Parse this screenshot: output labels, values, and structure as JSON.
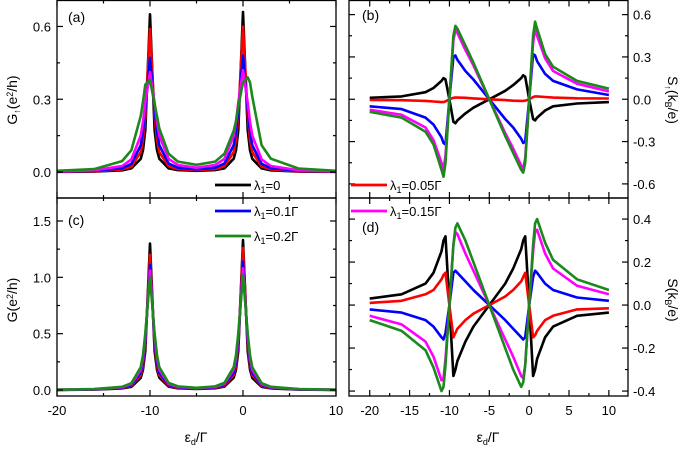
{
  "legend": [
    {
      "parts": [
        {
          "t": "λ"
        },
        {
          "t": "1",
          "sub": true
        },
        {
          "t": "=0"
        }
      ],
      "color": "#000000"
    },
    {
      "parts": [
        {
          "t": "λ"
        },
        {
          "t": "1",
          "sub": true
        },
        {
          "t": "=0.1Γ"
        }
      ],
      "color": "#0000ff"
    },
    {
      "parts": [
        {
          "t": "λ"
        },
        {
          "t": "1",
          "sub": true
        },
        {
          "t": "=0.2Γ"
        }
      ],
      "color": "#1a8a1a"
    },
    {
      "parts": [
        {
          "t": "λ"
        },
        {
          "t": "1",
          "sub": true
        },
        {
          "t": "=0.05Γ"
        }
      ],
      "color": "#ff0000"
    },
    {
      "parts": [
        {
          "t": "λ"
        },
        {
          "t": "1",
          "sub": true
        },
        {
          "t": "=0.15Γ"
        }
      ],
      "color": "#ff00ff"
    }
  ],
  "chart_data": [
    {
      "panel": "(a)",
      "type": "line",
      "ylabel_parts": [
        {
          "t": "G"
        },
        {
          "t": "↑",
          "sub": true
        },
        {
          "t": "(e"
        },
        {
          "t": "2",
          "sup": true
        },
        {
          "t": "/h)"
        }
      ],
      "xlim": [
        -20,
        10
      ],
      "ylim": [
        -0.107,
        0.707
      ],
      "xticks": [
        -20,
        -10,
        0,
        10
      ],
      "xtick_labels": [],
      "yticks": [
        0,
        0.3,
        0.6
      ],
      "ytick_labels": [
        "0.0",
        "0.3",
        "0.6"
      ],
      "x": [
        -20,
        -16,
        -13,
        -12,
        -11,
        -10.75,
        -10.5,
        -10,
        -9.5,
        -9.25,
        -9,
        -8,
        -7,
        -5,
        -3,
        -2,
        -1,
        -0.75,
        -0.5,
        0,
        0.5,
        0.75,
        1,
        2,
        3,
        6,
        10
      ],
      "series": [
        {
          "name": "λ1=0",
          "color": "#000000",
          "values": [
            0.001,
            0.002,
            0.007,
            0.015,
            0.054,
            0.09,
            0.173,
            0.65,
            0.173,
            0.09,
            0.055,
            0.015,
            0.008,
            0.005,
            0.008,
            0.015,
            0.055,
            0.09,
            0.173,
            0.66,
            0.173,
            0.09,
            0.054,
            0.015,
            0.007,
            0.002,
            0.001
          ]
        },
        {
          "name": "λ1=0.05Γ",
          "color": "#ff0000",
          "values": [
            0.001,
            0.003,
            0.011,
            0.023,
            0.082,
            0.132,
            0.231,
            0.59,
            0.231,
            0.132,
            0.082,
            0.024,
            0.012,
            0.008,
            0.012,
            0.024,
            0.082,
            0.132,
            0.231,
            0.6,
            0.231,
            0.132,
            0.082,
            0.023,
            0.011,
            0.003,
            0.001
          ]
        },
        {
          "name": "λ1=0.1Γ",
          "color": "#0000ff",
          "values": [
            0.002,
            0.005,
            0.016,
            0.034,
            0.11,
            0.166,
            0.259,
            0.471,
            0.259,
            0.166,
            0.111,
            0.035,
            0.018,
            0.011,
            0.018,
            0.035,
            0.111,
            0.166,
            0.259,
            0.48,
            0.259,
            0.166,
            0.11,
            0.034,
            0.016,
            0.005,
            0.002
          ]
        },
        {
          "name": "λ1=0.15Γ",
          "color": "#ff00ff",
          "values": [
            0.003,
            0.007,
            0.025,
            0.052,
            0.15,
            0.207,
            0.286,
            0.412,
            0.286,
            0.207,
            0.15,
            0.054,
            0.029,
            0.018,
            0.029,
            0.054,
            0.15,
            0.207,
            0.286,
            0.42,
            0.286,
            0.207,
            0.15,
            0.052,
            0.025,
            0.007,
            0.003
          ]
        },
        {
          "name": "λ1=0.2Γ",
          "color": "#1a8a1a",
          "values": [
            0.005,
            0.012,
            0.045,
            0.09,
            0.23,
            0.29,
            0.36,
            0.38,
            0.28,
            0.23,
            0.18,
            0.075,
            0.043,
            0.03,
            0.043,
            0.075,
            0.17,
            0.21,
            0.27,
            0.37,
            0.39,
            0.37,
            0.31,
            0.11,
            0.055,
            0.014,
            0.005
          ]
        }
      ]
    },
    {
      "panel": "(b)",
      "type": "line",
      "ylabel_parts": [
        {
          "t": "S"
        },
        {
          "t": "↑",
          "sub": true
        },
        {
          "t": "(k"
        },
        {
          "t": "B",
          "sub": true
        },
        {
          "t": "/e)"
        }
      ],
      "xlim": [
        -22.6,
        12.4
      ],
      "ylim": [
        -0.7,
        0.7
      ],
      "xticks": [
        -20,
        -15,
        -10,
        -5,
        0,
        5,
        10
      ],
      "xtick_labels": [],
      "yticks": [
        -0.6,
        -0.3,
        0,
        0.3,
        0.6
      ],
      "ytick_labels": [
        "-0.6",
        "-0.3",
        "0.0",
        "0.3",
        "0.6"
      ],
      "x": [
        -20,
        -16,
        -13,
        -12,
        -11,
        -10.75,
        -10.5,
        -10,
        -9.5,
        -9.25,
        -9,
        -8,
        -7,
        -5,
        -3,
        -2,
        -1,
        -0.75,
        -0.5,
        0,
        0.5,
        0.75,
        1,
        2,
        3,
        6,
        10
      ],
      "series": [
        {
          "name": "λ1=0",
          "color": "#000000",
          "values": [
            0.01,
            0.02,
            0.05,
            0.08,
            0.13,
            0.15,
            0.14,
            0,
            -0.16,
            -0.17,
            -0.15,
            -0.1,
            -0.06,
            0,
            0.06,
            0.1,
            0.15,
            0.17,
            0.16,
            0,
            -0.14,
            -0.15,
            -0.13,
            -0.08,
            -0.05,
            -0.03,
            -0.02
          ]
        },
        {
          "name": "λ1=0.05Γ",
          "color": "#ff0000",
          "values": [
            -0.005,
            -0.007,
            -0.012,
            -0.016,
            -0.02,
            -0.02,
            -0.015,
            0,
            0.01,
            0.012,
            0.012,
            0.01,
            0.006,
            0,
            -0.006,
            -0.01,
            -0.012,
            -0.012,
            -0.01,
            0,
            0.015,
            0.02,
            0.02,
            0.016,
            0.012,
            0.007,
            0.005
          ]
        },
        {
          "name": "λ1=0.1Γ",
          "color": "#0000ff",
          "values": [
            -0.05,
            -0.07,
            -0.13,
            -0.18,
            -0.27,
            -0.31,
            -0.32,
            0,
            0.3,
            0.31,
            0.28,
            0.2,
            0.14,
            0,
            -0.14,
            -0.2,
            -0.28,
            -0.31,
            -0.3,
            0,
            0.32,
            0.31,
            0.27,
            0.18,
            0.13,
            0.07,
            0.03
          ]
        },
        {
          "name": "λ1=0.15Γ",
          "color": "#ff00ff",
          "values": [
            -0.075,
            -0.11,
            -0.2,
            -0.29,
            -0.45,
            -0.5,
            -0.4,
            0,
            0.42,
            0.49,
            0.47,
            0.35,
            0.24,
            0,
            -0.24,
            -0.35,
            -0.47,
            -0.49,
            -0.42,
            0,
            0.4,
            0.5,
            0.45,
            0.29,
            0.2,
            0.11,
            0.055
          ]
        },
        {
          "name": "λ1=0.2Γ",
          "color": "#1a8a1a",
          "values": [
            -0.09,
            -0.13,
            -0.23,
            -0.32,
            -0.5,
            -0.55,
            -0.45,
            0,
            0.45,
            0.52,
            0.5,
            0.38,
            0.26,
            0,
            -0.26,
            -0.38,
            -0.5,
            -0.52,
            -0.45,
            0,
            0.45,
            0.55,
            0.5,
            0.32,
            0.23,
            0.13,
            0.075
          ]
        }
      ]
    },
    {
      "panel": "(c)",
      "type": "line",
      "ylabel_parts": [
        {
          "t": "G(e"
        },
        {
          "t": "2",
          "sup": true
        },
        {
          "t": "/h)"
        }
      ],
      "xlabel_parts": [
        {
          "t": "ε"
        },
        {
          "t": "d",
          "sub": true
        },
        {
          "t": "/Γ"
        }
      ],
      "xlim": [
        -20,
        10
      ],
      "ylim": [
        -0.053,
        1.704
      ],
      "xticks": [
        -20,
        -10,
        0,
        10
      ],
      "xtick_labels": [
        "-20",
        "-10",
        "0",
        "10"
      ],
      "yticks": [
        0,
        0.5,
        1.0,
        1.5
      ],
      "ytick_labels": [
        "0.0",
        "0.5",
        "1.0",
        "1.5"
      ],
      "x": [
        -20,
        -16,
        -13,
        -12,
        -11,
        -10.75,
        -10.5,
        -10,
        -9.5,
        -9.25,
        -9,
        -8,
        -7,
        -5,
        -3,
        -2,
        -1,
        -0.75,
        -0.5,
        0,
        0.5,
        0.75,
        1,
        2,
        3,
        6,
        10
      ],
      "series": [
        {
          "name": "λ1=0",
          "color": "#000000",
          "values": [
            0.001,
            0.004,
            0.014,
            0.029,
            0.108,
            0.181,
            0.346,
            1.3,
            0.346,
            0.181,
            0.109,
            0.03,
            0.015,
            0.009,
            0.015,
            0.03,
            0.109,
            0.181,
            0.346,
            1.33,
            0.346,
            0.181,
            0.108,
            0.029,
            0.014,
            0.004,
            0.001
          ]
        },
        {
          "name": "λ1=0.05Γ",
          "color": "#ff0000",
          "values": [
            0.002,
            0.005,
            0.017,
            0.037,
            0.132,
            0.216,
            0.396,
            1.2,
            0.396,
            0.216,
            0.133,
            0.038,
            0.019,
            0.012,
            0.019,
            0.038,
            0.133,
            0.216,
            0.396,
            1.26,
            0.396,
            0.216,
            0.132,
            0.037,
            0.017,
            0.005,
            0.002
          ]
        },
        {
          "name": "λ1=0.1Γ",
          "color": "#0000ff",
          "values": [
            0.002,
            0.006,
            0.02,
            0.044,
            0.153,
            0.245,
            0.431,
            1.11,
            0.431,
            0.245,
            0.154,
            0.045,
            0.023,
            0.014,
            0.023,
            0.045,
            0.154,
            0.245,
            0.431,
            1.14,
            0.431,
            0.245,
            0.153,
            0.044,
            0.02,
            0.006,
            0.002
          ]
        },
        {
          "name": "λ1=0.15Γ",
          "color": "#ff00ff",
          "values": [
            0.003,
            0.007,
            0.024,
            0.052,
            0.179,
            0.28,
            0.471,
            1.06,
            0.473,
            0.28,
            0.18,
            0.054,
            0.027,
            0.017,
            0.027,
            0.054,
            0.18,
            0.28,
            0.473,
            1.08,
            0.471,
            0.28,
            0.179,
            0.052,
            0.024,
            0.007,
            0.003
          ]
        },
        {
          "name": "λ1=0.2Γ",
          "color": "#1a8a1a",
          "values": [
            0.003,
            0.008,
            0.029,
            0.061,
            0.202,
            0.31,
            0.502,
            1.0,
            0.503,
            0.31,
            0.203,
            0.063,
            0.032,
            0.02,
            0.032,
            0.063,
            0.203,
            0.31,
            0.503,
            1.02,
            0.502,
            0.31,
            0.202,
            0.061,
            0.029,
            0.008,
            0.003
          ]
        }
      ]
    },
    {
      "panel": "(d)",
      "type": "line",
      "ylabel_parts": [
        {
          "t": "S(k"
        },
        {
          "t": "B",
          "sub": true
        },
        {
          "t": "/e)"
        }
      ],
      "xlabel_parts": [
        {
          "t": "ε"
        },
        {
          "t": "d",
          "sub": true
        },
        {
          "t": "/Γ"
        }
      ],
      "xlim": [
        -22.6,
        12.4
      ],
      "ylim": [
        -0.423,
        0.498
      ],
      "xticks": [
        -20,
        -15,
        -10,
        -5,
        0,
        5,
        10
      ],
      "xtick_labels": [
        "-20",
        "-15",
        "-10",
        "-5",
        "0",
        "5",
        "10"
      ],
      "yticks": [
        -0.4,
        -0.2,
        0,
        0.2,
        0.4
      ],
      "ytick_labels": [
        "-0.4",
        "-0.2",
        "0.0",
        "0.2",
        "0.4"
      ],
      "x": [
        -20,
        -16,
        -13,
        -12,
        -11,
        -10.75,
        -10.5,
        -10,
        -9.5,
        -9.25,
        -9,
        -8,
        -7,
        -5,
        -3,
        -2,
        -1,
        -0.75,
        -0.5,
        0,
        0.5,
        0.75,
        1,
        2,
        3,
        6,
        10
      ],
      "series": [
        {
          "name": "λ1=0",
          "color": "#000000",
          "values": [
            0.03,
            0.05,
            0.1,
            0.15,
            0.25,
            0.3,
            0.32,
            0,
            -0.33,
            -0.3,
            -0.26,
            -0.17,
            -0.1,
            0,
            0.1,
            0.17,
            0.26,
            0.3,
            0.32,
            0,
            -0.33,
            -0.3,
            -0.25,
            -0.15,
            -0.1,
            -0.05,
            -0.035
          ]
        },
        {
          "name": "λ1=0.05Γ",
          "color": "#ff0000",
          "values": [
            0.01,
            0.02,
            0.05,
            0.07,
            0.12,
            0.14,
            0.15,
            0,
            -0.15,
            -0.13,
            -0.11,
            -0.07,
            -0.04,
            0,
            0.04,
            0.07,
            0.11,
            0.13,
            0.15,
            0,
            -0.15,
            -0.14,
            -0.12,
            -0.07,
            -0.05,
            -0.02,
            -0.015
          ]
        },
        {
          "name": "λ1=0.1Γ",
          "color": "#0000ff",
          "values": [
            -0.02,
            -0.035,
            -0.07,
            -0.1,
            -0.15,
            -0.16,
            -0.13,
            0,
            0.15,
            0.16,
            0.15,
            0.11,
            0.07,
            0,
            -0.07,
            -0.11,
            -0.15,
            -0.16,
            -0.15,
            0,
            0.13,
            0.16,
            0.15,
            0.1,
            0.07,
            0.035,
            0.02
          ]
        },
        {
          "name": "λ1=0.15Γ",
          "color": "#ff00ff",
          "values": [
            -0.05,
            -0.09,
            -0.17,
            -0.24,
            -0.35,
            -0.34,
            -0.25,
            0,
            0.28,
            0.34,
            0.33,
            0.24,
            0.16,
            0,
            -0.16,
            -0.24,
            -0.33,
            -0.34,
            -0.28,
            0,
            0.25,
            0.34,
            0.35,
            0.24,
            0.17,
            0.09,
            0.05
          ]
        },
        {
          "name": "λ1=0.2Γ",
          "color": "#1a8a1a",
          "values": [
            -0.07,
            -0.12,
            -0.21,
            -0.29,
            -0.4,
            -0.38,
            -0.28,
            0,
            0.28,
            0.36,
            0.38,
            0.3,
            0.2,
            0,
            -0.2,
            -0.3,
            -0.38,
            -0.36,
            -0.28,
            0,
            0.28,
            0.38,
            0.4,
            0.29,
            0.21,
            0.12,
            0.07
          ]
        }
      ]
    }
  ]
}
